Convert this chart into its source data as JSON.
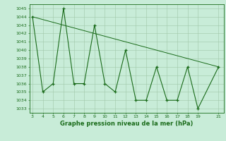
{
  "x": [
    3,
    4,
    5,
    6,
    7,
    8,
    9,
    10,
    11,
    12,
    13,
    14,
    15,
    16,
    17,
    18,
    19,
    21
  ],
  "y": [
    1044,
    1035,
    1036,
    1045,
    1036,
    1036,
    1043,
    1036,
    1035,
    1040,
    1034,
    1034,
    1038,
    1034,
    1034,
    1038,
    1033,
    1038
  ],
  "trend_x": [
    3,
    21
  ],
  "trend_y": [
    1044,
    1038
  ],
  "line_color": "#1a6b1a",
  "bg_color": "#c8ecd8",
  "grid_color": "#a0c8a8",
  "xlabel": "Graphe pression niveau de la mer (hPa)",
  "ylim_min": 1032.5,
  "ylim_max": 1045.5,
  "xlim_min": 2.7,
  "xlim_max": 21.5,
  "yticks": [
    1033,
    1034,
    1035,
    1036,
    1037,
    1038,
    1039,
    1040,
    1041,
    1042,
    1043,
    1044,
    1045
  ],
  "xticks": [
    3,
    4,
    5,
    6,
    7,
    8,
    9,
    10,
    11,
    12,
    13,
    14,
    15,
    16,
    17,
    18,
    19,
    21
  ],
  "tick_fontsize": 4.5,
  "xlabel_fontsize": 6.0,
  "linewidth": 0.8,
  "markersize": 3.5,
  "markeredgewidth": 0.9
}
